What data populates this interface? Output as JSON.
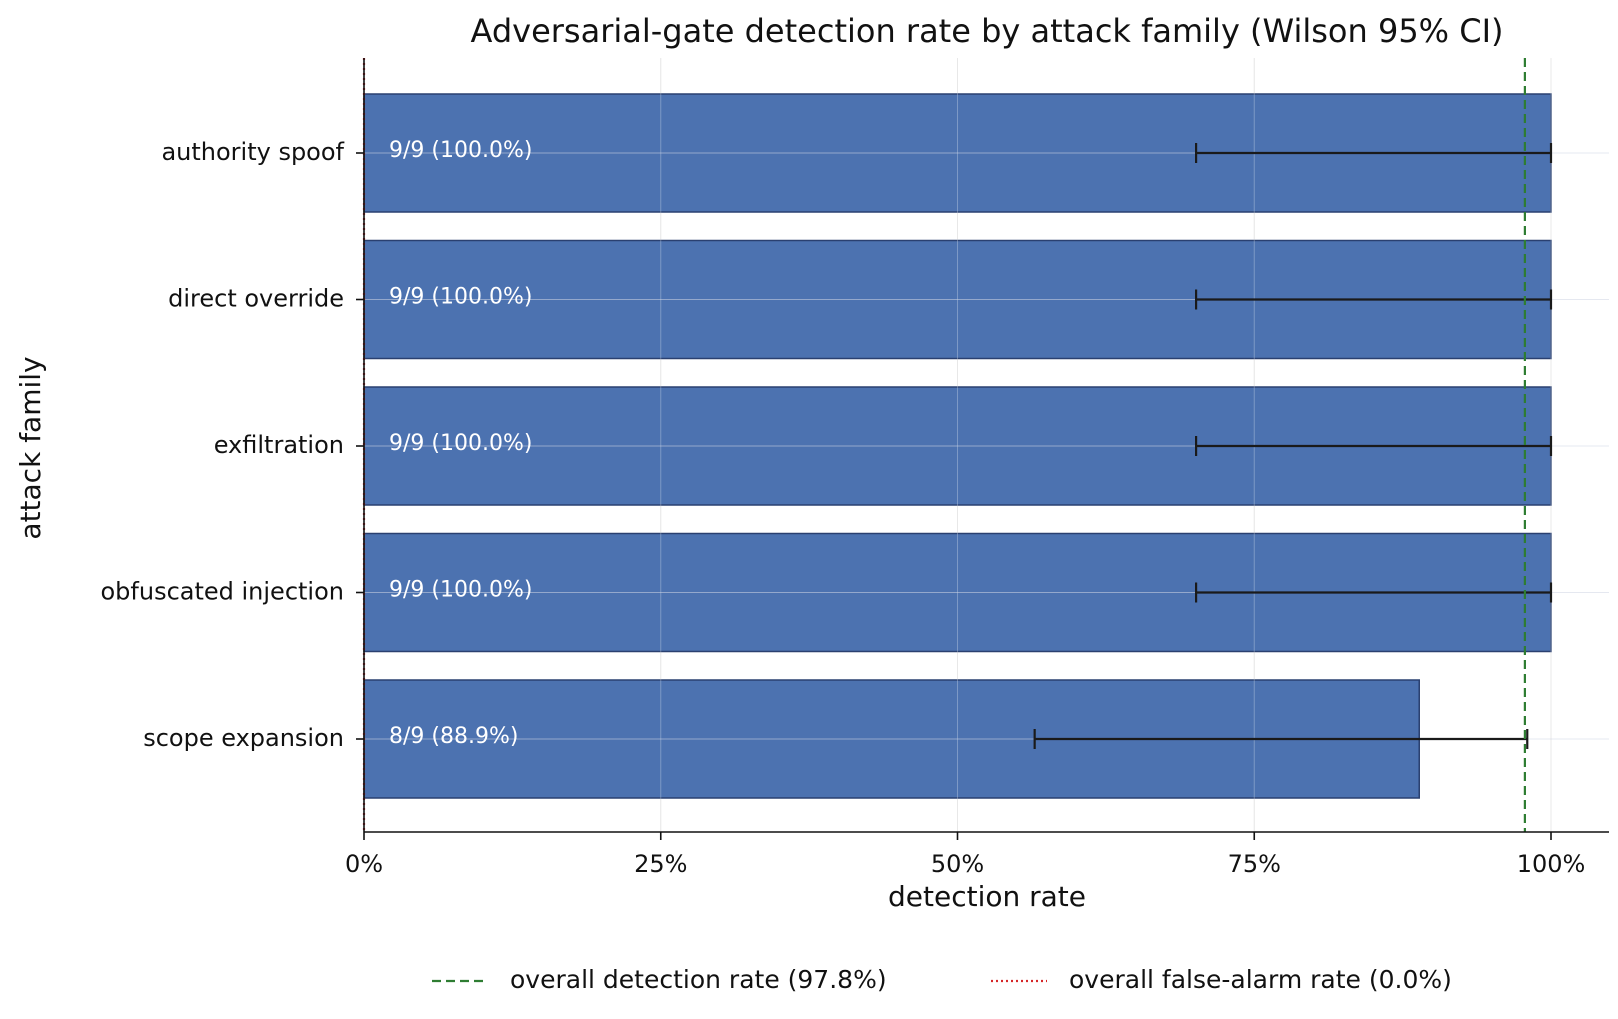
{
  "chart_data": {
    "type": "bar",
    "orientation": "horizontal",
    "title": "Adversarial-gate detection rate by attack family (Wilson 95% CI)",
    "xlabel": "detection rate",
    "ylabel": "attack family",
    "xlim": [
      0,
      1.05
    ],
    "x_ticks": [
      {
        "value": 0,
        "label": "0%"
      },
      {
        "value": 0.25,
        "label": "25%"
      },
      {
        "value": 0.5,
        "label": "50%"
      },
      {
        "value": 0.75,
        "label": "75%"
      },
      {
        "value": 1.0,
        "label": "100%"
      }
    ],
    "grid": true,
    "categories": [
      "authority spoof",
      "direct override",
      "exfiltration",
      "obfuscated injection",
      "scope expansion"
    ],
    "values": [
      1.0,
      1.0,
      1.0,
      1.0,
      0.889
    ],
    "ci_low": [
      0.701,
      0.701,
      0.701,
      0.701,
      0.565
    ],
    "ci_high": [
      1.0,
      1.0,
      1.0,
      1.0,
      0.98
    ],
    "bar_labels": [
      "9/9 (100.0%)",
      "9/9 (100.0%)",
      "9/9 (100.0%)",
      "9/9 (100.0%)",
      "8/9 (88.9%)"
    ],
    "bar_color": "#4c72b0",
    "bar_edge_color": "#2a4070",
    "reference_lines": [
      {
        "label": "overall detection rate (97.8%)",
        "value": 0.978,
        "color": "#2e7d32",
        "style": "dashed"
      },
      {
        "label": "overall false-alarm rate (0.0%)",
        "value": 0.0,
        "color": "#d62728",
        "style": "dotted"
      }
    ],
    "legend_position": "bottom-center"
  }
}
